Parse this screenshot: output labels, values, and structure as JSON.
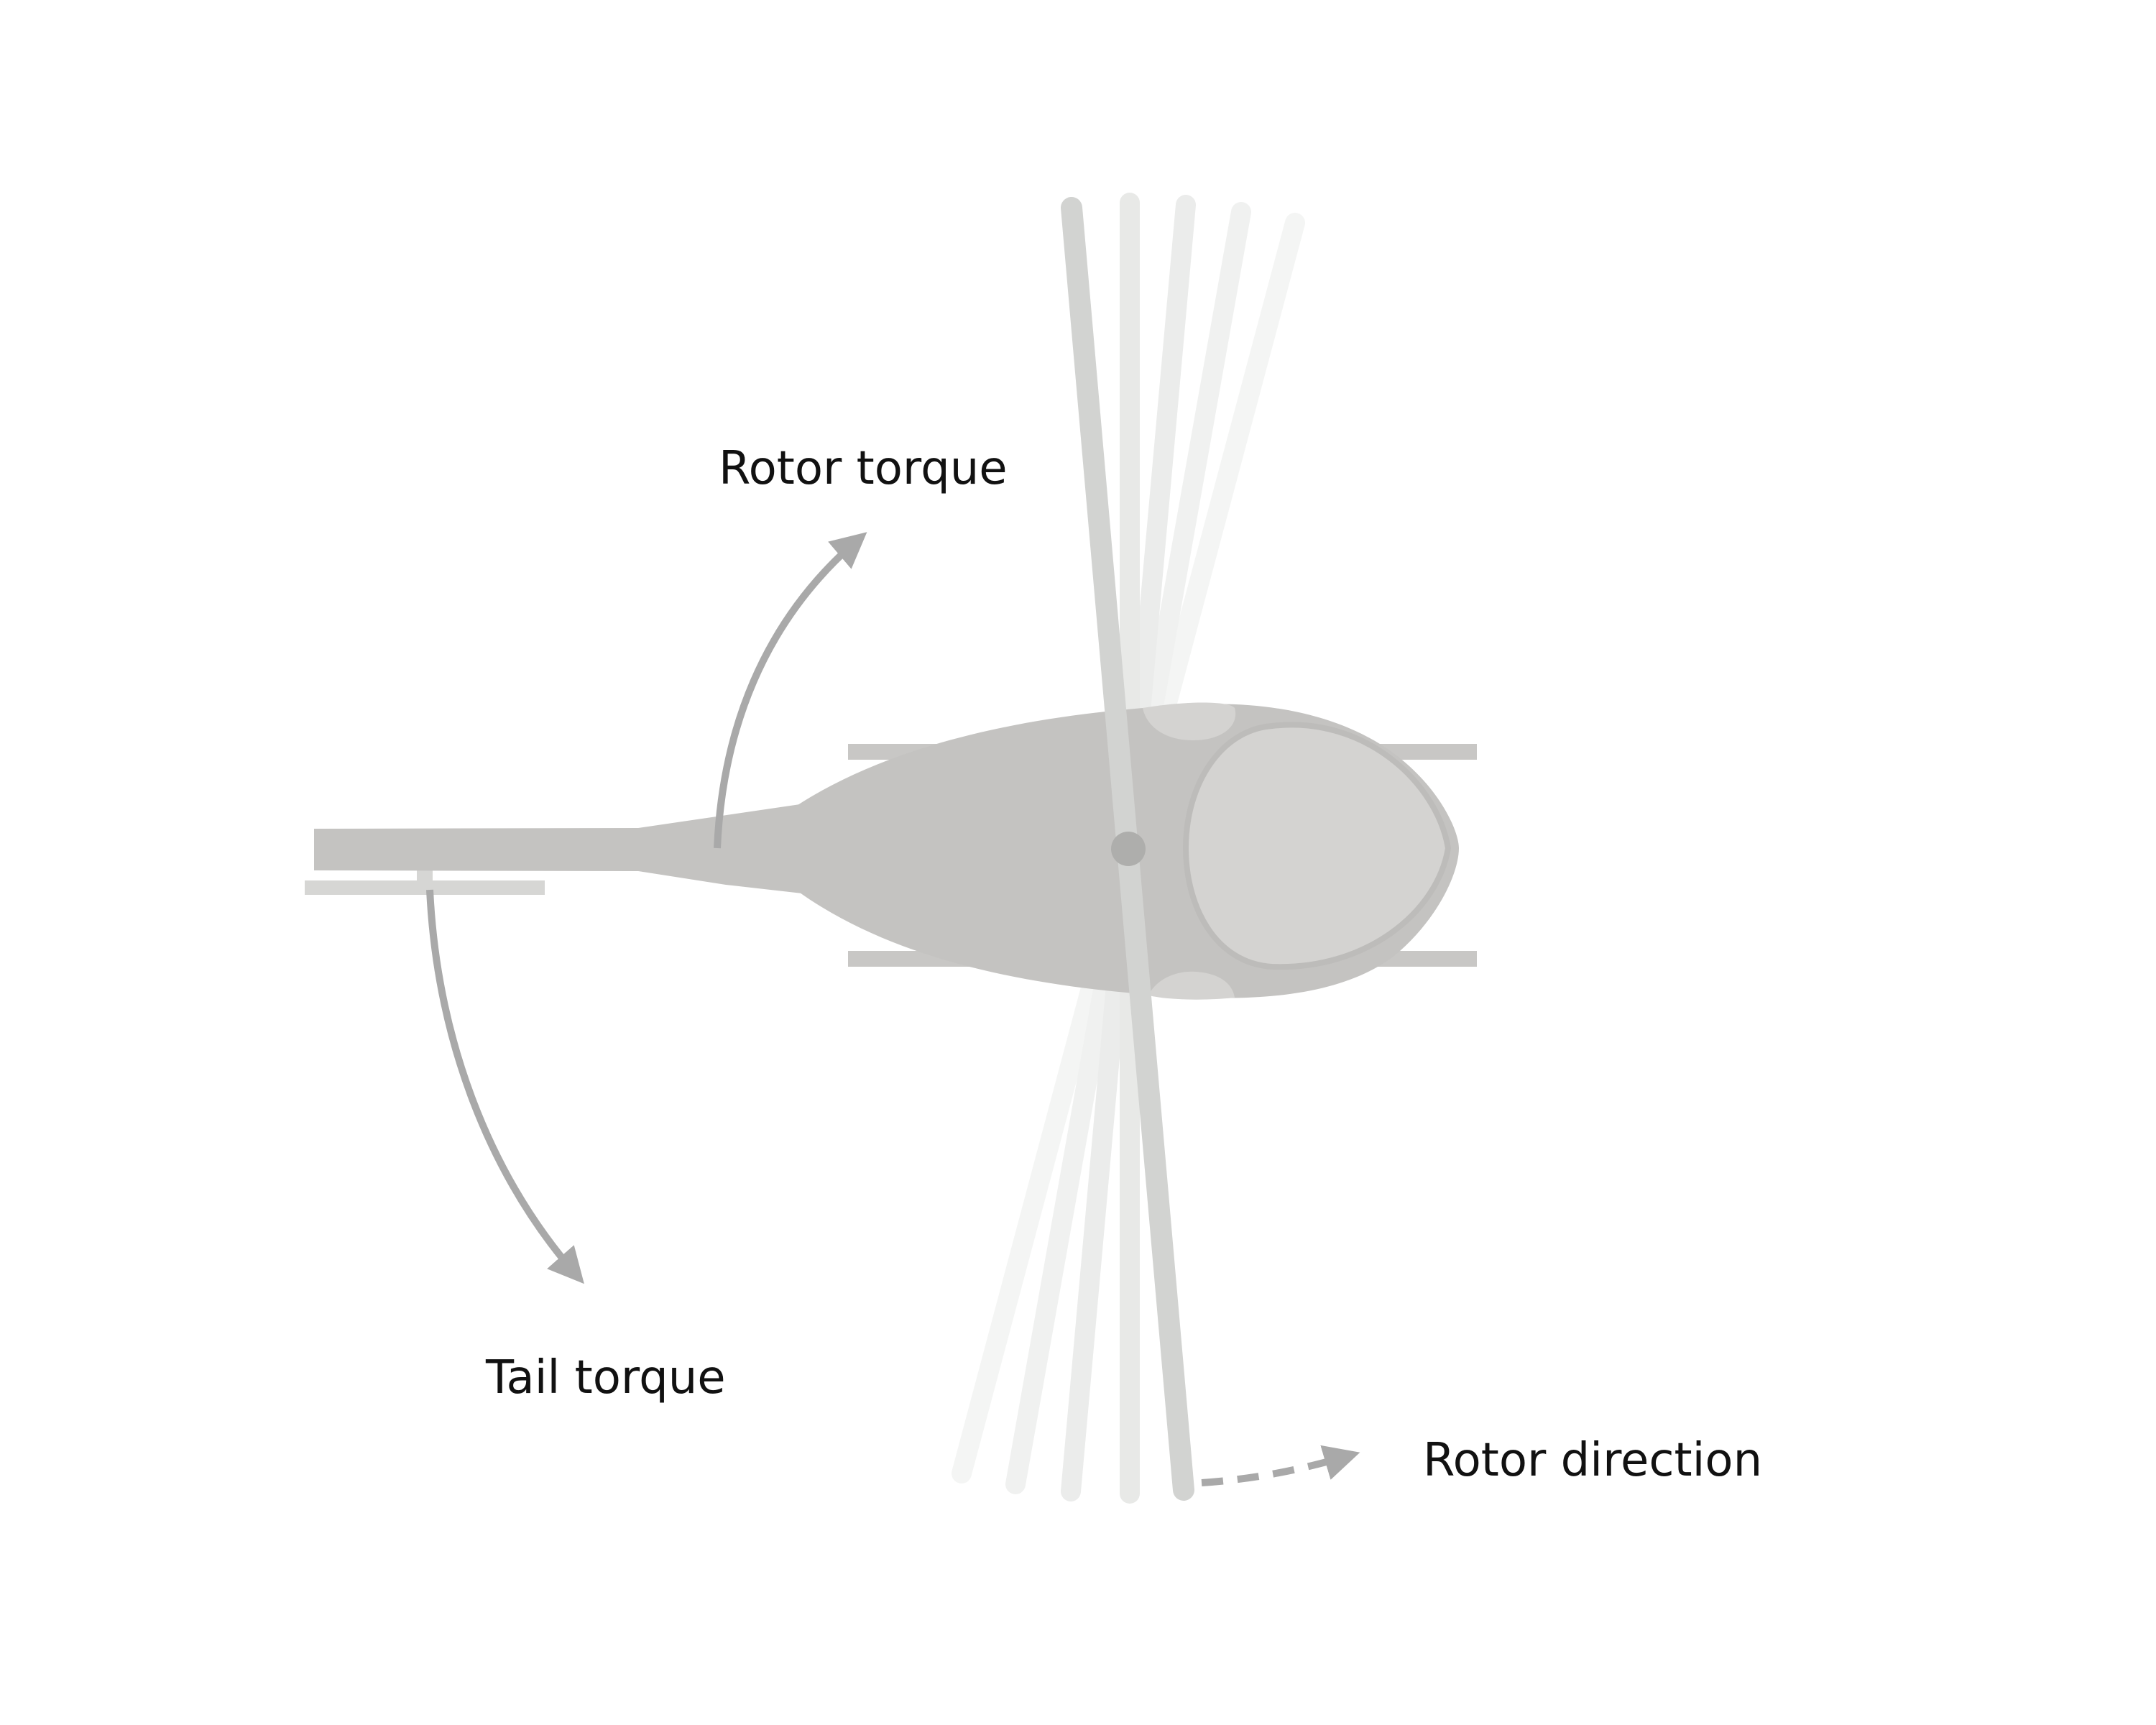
{
  "labels": {
    "rotor_torque": "Rotor torque",
    "tail_torque": "Tail torque",
    "rotor_direction": "Rotor direction"
  },
  "colors": {
    "body": "#c4c3c1",
    "canopy": "#d4d3d1",
    "canopy_edge": "#bdbcba",
    "skid": "#c8c7c5",
    "tail_rotor": "#d6d6d4",
    "blade_main": "#d2d3d1",
    "blade_ghost": "#e8e9e7",
    "hub": "#aeaeac",
    "arrow": "#a9a9a9",
    "text": "#111111"
  }
}
